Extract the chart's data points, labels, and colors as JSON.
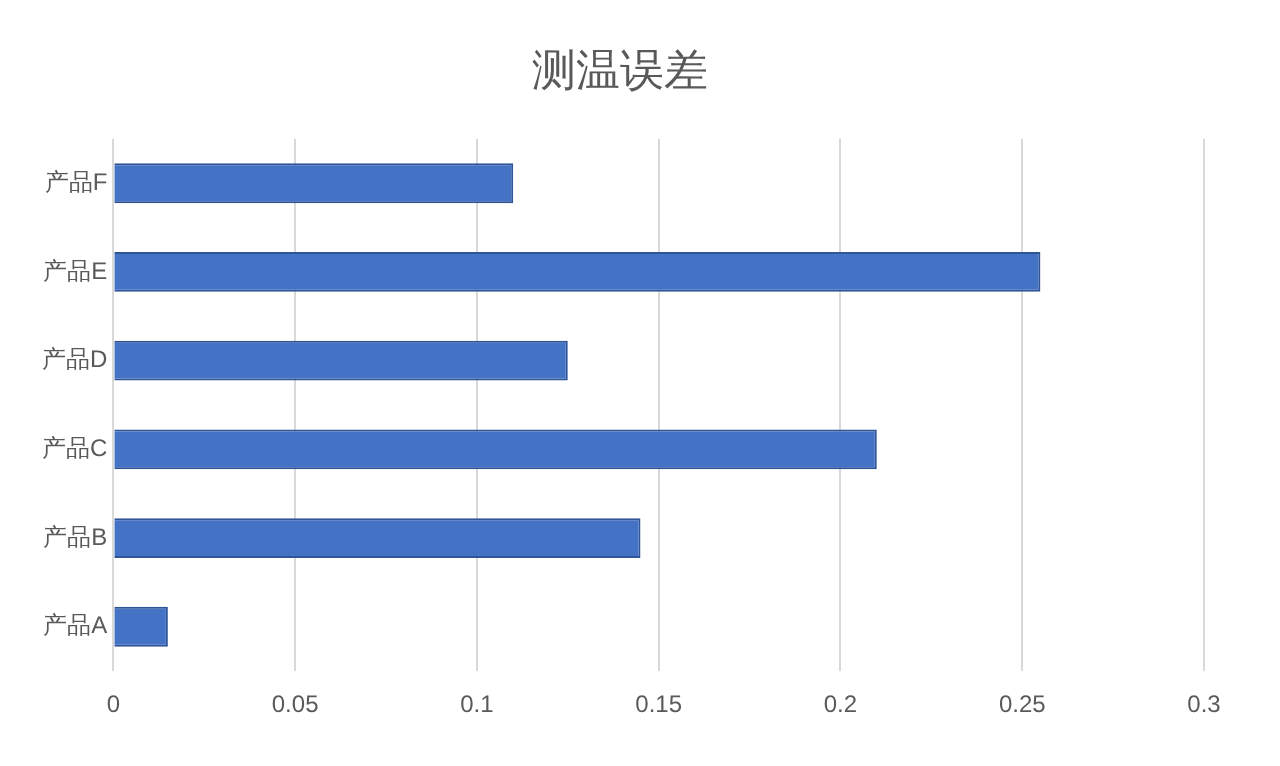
{
  "chart_data": {
    "type": "bar",
    "orientation": "horizontal",
    "title": "测温误差",
    "categories": [
      "产品F",
      "产品E",
      "产品D",
      "产品C",
      "产品B",
      "产品A"
    ],
    "values": [
      0.11,
      0.255,
      0.125,
      0.21,
      0.145,
      0.015
    ],
    "color": "#4472c4",
    "xlim": [
      0,
      0.3
    ],
    "xticks": [
      0,
      0.05,
      0.1,
      0.15,
      0.2,
      0.25,
      0.3
    ],
    "grid": "x",
    "legend": false
  }
}
